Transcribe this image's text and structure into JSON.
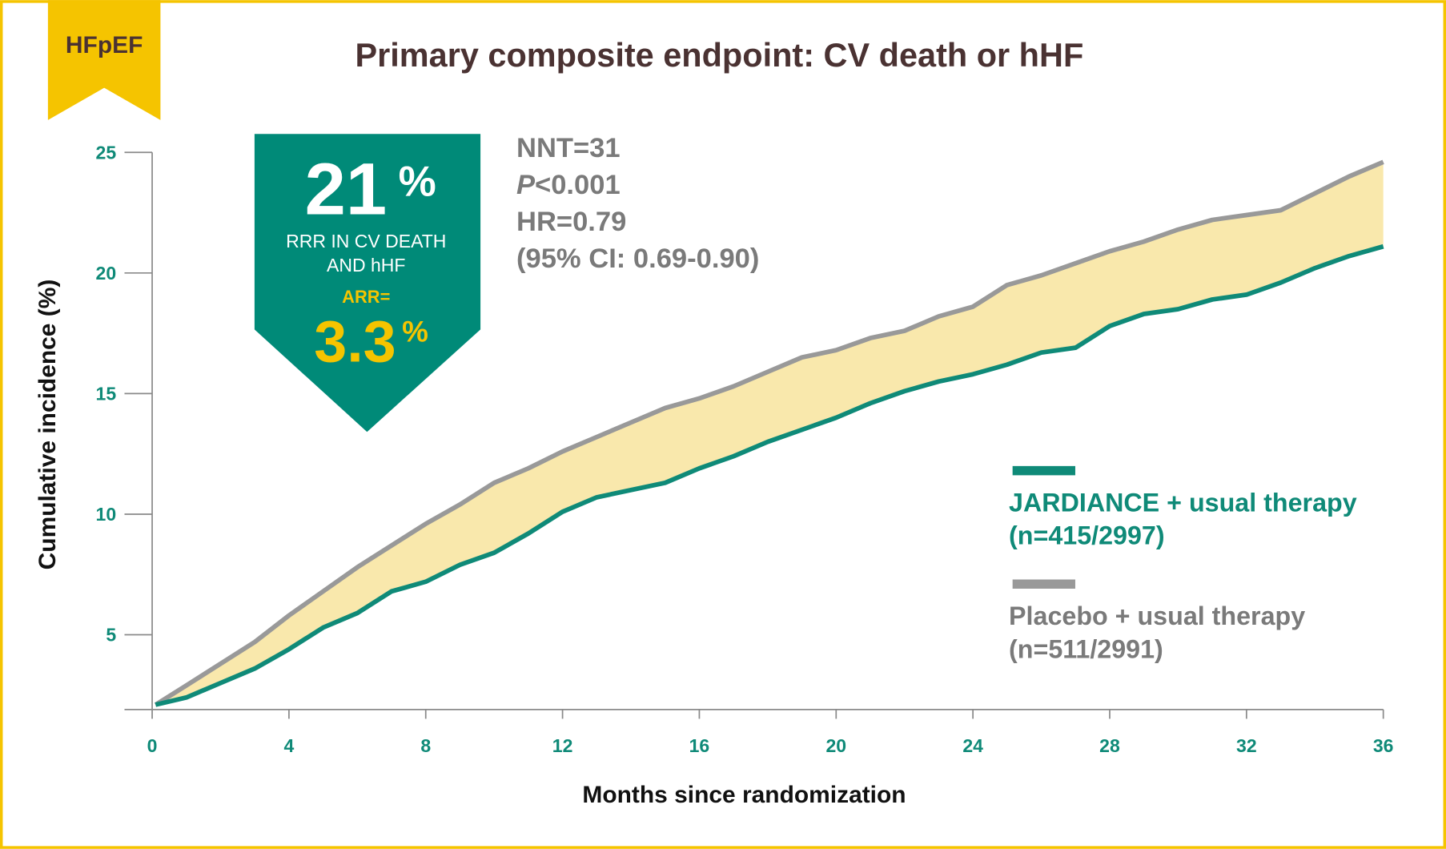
{
  "chart_data": {
    "type": "line",
    "badge": "HFpEF",
    "title": "Primary composite endpoint: CV death or hHF",
    "x_label": "Months since randomization",
    "y_label": "Cumulative incidence (%)",
    "xlim": [
      0,
      36
    ],
    "xticks": [
      0,
      4,
      8,
      12,
      16,
      20,
      24,
      28,
      32,
      36
    ],
    "ylim": [
      1.9,
      25
    ],
    "yticks": [
      5,
      10,
      15,
      20,
      25
    ],
    "x": [
      0.1,
      1,
      2,
      3,
      4,
      5,
      6,
      7,
      8,
      9,
      10,
      11,
      12,
      13,
      14,
      15,
      16,
      17,
      18,
      19,
      20,
      21,
      22,
      23,
      24,
      25,
      26,
      27,
      28,
      29,
      30,
      31,
      32,
      33,
      34,
      35,
      36
    ],
    "series": [
      {
        "name": "JARDIANCE + usual therapy",
        "note": "(n=415/2997)",
        "color": "#0f8a78",
        "values": [
          2.1,
          2.4,
          3.0,
          3.6,
          4.4,
          5.3,
          5.9,
          6.8,
          7.2,
          7.9,
          8.4,
          9.2,
          10.1,
          10.7,
          11.0,
          11.3,
          11.9,
          12.4,
          13.0,
          13.5,
          14.0,
          14.6,
          15.1,
          15.5,
          15.8,
          16.2,
          16.7,
          16.9,
          17.8,
          18.3,
          18.5,
          18.9,
          19.1,
          19.6,
          20.2,
          20.7,
          21.1
        ]
      },
      {
        "name": "Placebo + usual therapy",
        "note": "(n=511/2991)",
        "color": "#999999",
        "values": [
          2.1,
          2.9,
          3.8,
          4.7,
          5.8,
          6.8,
          7.8,
          8.7,
          9.6,
          10.4,
          11.3,
          11.9,
          12.6,
          13.2,
          13.8,
          14.4,
          14.8,
          15.3,
          15.9,
          16.5,
          16.8,
          17.3,
          17.6,
          18.2,
          18.6,
          19.5,
          19.9,
          20.4,
          20.9,
          21.3,
          21.8,
          22.2,
          22.4,
          22.6,
          23.3,
          24.0,
          24.6
        ]
      }
    ],
    "fill_color": "#f8e6a3",
    "callout": {
      "rrr": "21",
      "rrr_unit": "%",
      "line1": "RRR IN CV DEATH",
      "line2": "AND hHF",
      "arr_label": "ARR=",
      "arr": "3.3",
      "arr_unit": "%"
    },
    "stats": {
      "nnt": "NNT=31",
      "p_symbol": "P",
      "p_text": "<0.001",
      "hr": "HR=0.79",
      "ci": "(95% CI: 0.69-0.90)"
    }
  }
}
